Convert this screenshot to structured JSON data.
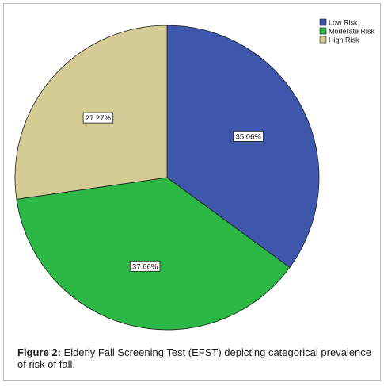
{
  "chart_data": {
    "type": "pie",
    "categories": [
      "Low Risk",
      "Moderate Risk",
      "High Risk"
    ],
    "values": [
      35.06,
      37.66,
      27.27
    ],
    "data_labels": [
      "35.06%",
      "37.66%",
      "27.27%"
    ],
    "colors": [
      "#3f56ad",
      "#2bb845",
      "#d5cc95"
    ],
    "start_angle_deg": 0,
    "direction": "clockwise",
    "legend_position": "top-right",
    "legend_entries": [
      "Low Risk",
      "Moderate Risk",
      "High Risk"
    ]
  },
  "caption": {
    "label": "Figure 2:",
    "text": " Elderly Fall Screening Test (EFST) depicting categorical prevalence of risk of fall."
  }
}
